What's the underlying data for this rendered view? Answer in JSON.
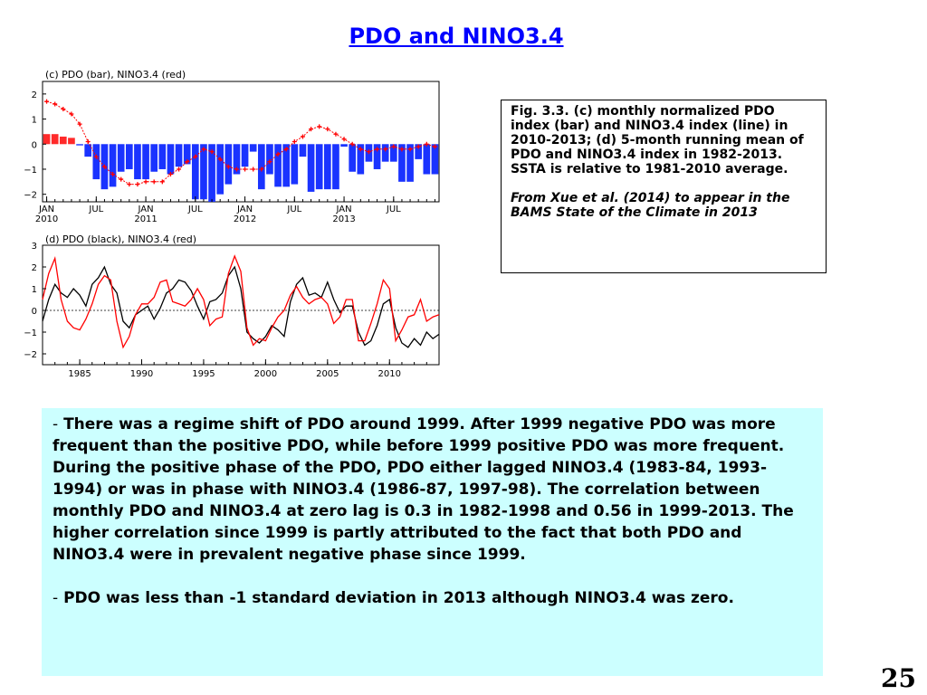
{
  "slide": {
    "title": "PDO and NINO3.4",
    "page_number": "25"
  },
  "caption": {
    "text": "Fig. 3.3. (c) monthly normalized PDO index (bar) and NINO3.4 index (line) in 2010-2013; (d) 5-month running mean of PDO and NINO3.4 index in 1982-2013. SSTA is relative to 1981-2010 average.",
    "citation": "From Xue et al. (2014) to appear in the BAMS State of the Climate in 2013"
  },
  "notes": {
    "dash": "-",
    "bullet1": "There was a regime shift of PDO around 1999. After 1999 negative PDO was more frequent than the positive PDO, while before 1999 positive PDO was more frequent.  During the positive phase of the PDO, PDO either lagged NINO3.4 (1983-84, 1993-1994) or was in phase with NINO3.4 (1986-87, 1997-98).  The correlation between monthly PDO and NINO3.4 at zero lag is 0.3 in 1982-1998 and 0.56 in 1999-2013. The higher correlation since 1999 is partly attributed to the fact that both PDO and NINO3.4 were in prevalent negative phase since 1999.",
    "bullet2": "PDO was less than -1 standard deviation in 2013 although NINO3.4 was zero."
  },
  "colors": {
    "pdo_positive": "#ff2a2a",
    "pdo_negative": "#1a33ff",
    "nino": "#ff0000",
    "pdo_line": "#000000",
    "notes_bg": "#ccffff",
    "title": "#0000ff"
  },
  "chart_data": [
    {
      "type": "bar",
      "title": "(c) PDO (bar), NINO3.4 (red)",
      "x_tick_labels": [
        {
          "month": 1,
          "line1": "JAN",
          "line2": "2010"
        },
        {
          "month": 7,
          "line1": "JUL",
          "line2": ""
        },
        {
          "month": 13,
          "line1": "JAN",
          "line2": "2011"
        },
        {
          "month": 19,
          "line1": "JUL",
          "line2": ""
        },
        {
          "month": 25,
          "line1": "JAN",
          "line2": "2012"
        },
        {
          "month": 31,
          "line1": "JUL",
          "line2": ""
        },
        {
          "month": 37,
          "line1": "JAN",
          "line2": "2013"
        },
        {
          "month": 43,
          "line1": "JUL",
          "line2": ""
        }
      ],
      "y_ticks": [
        2,
        1,
        0,
        -1,
        -2
      ],
      "ylim": [
        -2.3,
        2.5
      ],
      "xlim": [
        0.5,
        48.5
      ],
      "series": [
        {
          "name": "PDO",
          "mark": "bar",
          "values": [
            0.4,
            0.4,
            0.3,
            0.25,
            -0.05,
            -0.5,
            -1.4,
            -1.8,
            -1.7,
            -1.1,
            -1.0,
            -1.4,
            -1.4,
            -1.1,
            -1.0,
            -1.2,
            -0.9,
            -0.8,
            -2.2,
            -2.2,
            -2.3,
            -2.0,
            -1.6,
            -1.2,
            -0.9,
            -0.3,
            -1.8,
            -1.2,
            -1.7,
            -1.7,
            -1.6,
            -0.5,
            -1.9,
            -1.8,
            -1.8,
            -1.8,
            -0.1,
            -1.1,
            -1.2,
            -0.7,
            -1.0,
            -0.7,
            -0.7,
            -1.5,
            -1.5,
            -0.6,
            -1.2,
            -1.2
          ]
        },
        {
          "name": "NINO3.4",
          "mark": "line",
          "values": [
            1.7,
            1.6,
            1.4,
            1.2,
            0.8,
            0.1,
            -0.5,
            -0.9,
            -1.2,
            -1.4,
            -1.6,
            -1.6,
            -1.5,
            -1.5,
            -1.5,
            -1.2,
            -1.0,
            -0.7,
            -0.5,
            -0.2,
            -0.3,
            -0.6,
            -0.9,
            -1.0,
            -1.0,
            -1.0,
            -1.0,
            -0.7,
            -0.4,
            -0.2,
            0.1,
            0.3,
            0.6,
            0.7,
            0.6,
            0.4,
            0.2,
            0.0,
            -0.2,
            -0.3,
            -0.2,
            -0.2,
            -0.1,
            -0.2,
            -0.2,
            -0.1,
            0.0,
            -0.1
          ]
        }
      ]
    },
    {
      "type": "line",
      "title": "(d) PDO (black), NINO3.4 (red)",
      "x_ticks": [
        1985,
        1990,
        1995,
        2000,
        2005,
        2010
      ],
      "xlim": [
        1982,
        2014
      ],
      "y_ticks": [
        3,
        2,
        1,
        0,
        -1,
        -2
      ],
      "ylim": [
        -2.5,
        3
      ],
      "zero_line": "dashed",
      "series": [
        {
          "name": "PDO",
          "x": [
            1982.0,
            1982.5,
            1983.0,
            1983.5,
            1984.0,
            1984.5,
            1985.0,
            1985.5,
            1986.0,
            1986.5,
            1987.0,
            1987.5,
            1988.0,
            1988.5,
            1989.0,
            1989.5,
            1990.0,
            1990.5,
            1991.0,
            1991.5,
            1992.0,
            1992.5,
            1993.0,
            1993.5,
            1994.0,
            1994.5,
            1995.0,
            1995.5,
            1996.0,
            1996.5,
            1997.0,
            1997.5,
            1998.0,
            1998.5,
            1999.0,
            1999.5,
            2000.0,
            2000.5,
            2001.0,
            2001.5,
            2002.0,
            2002.5,
            2003.0,
            2003.5,
            2004.0,
            2004.5,
            2005.0,
            2005.5,
            2006.0,
            2006.5,
            2007.0,
            2007.5,
            2008.0,
            2008.5,
            2009.0,
            2009.5,
            2010.0,
            2010.5,
            2011.0,
            2011.5,
            2012.0,
            2012.5,
            2013.0,
            2013.5,
            2014.0
          ],
          "y": [
            -0.5,
            0.5,
            1.2,
            0.8,
            0.6,
            1.0,
            0.7,
            0.2,
            1.2,
            1.5,
            2.0,
            1.2,
            0.8,
            -0.5,
            -0.8,
            -0.2,
            0.0,
            0.2,
            -0.4,
            0.1,
            0.8,
            1.0,
            1.4,
            1.3,
            0.9,
            0.2,
            -0.4,
            0.4,
            0.5,
            0.8,
            1.6,
            2.0,
            1.0,
            -1.0,
            -1.3,
            -1.5,
            -1.2,
            -0.7,
            -0.9,
            -1.2,
            0.4,
            1.2,
            1.5,
            0.7,
            0.8,
            0.6,
            1.3,
            0.5,
            -0.1,
            0.2,
            0.2,
            -1.0,
            -1.6,
            -1.4,
            -0.7,
            0.3,
            0.5,
            -0.8,
            -1.5,
            -1.7,
            -1.3,
            -1.6,
            -1.0,
            -1.3,
            -1.1
          ]
        },
        {
          "name": "NINO3.4",
          "x": [
            1982.0,
            1982.5,
            1983.0,
            1983.5,
            1984.0,
            1984.5,
            1985.0,
            1985.5,
            1986.0,
            1986.5,
            1987.0,
            1987.5,
            1988.0,
            1988.5,
            1989.0,
            1989.5,
            1990.0,
            1990.5,
            1991.0,
            1991.5,
            1992.0,
            1992.5,
            1993.0,
            1993.5,
            1994.0,
            1994.5,
            1995.0,
            1995.5,
            1996.0,
            1996.5,
            1997.0,
            1997.5,
            1998.0,
            1998.5,
            1999.0,
            1999.5,
            2000.0,
            2000.5,
            2001.0,
            2001.5,
            2002.0,
            2002.5,
            2003.0,
            2003.5,
            2004.0,
            2004.5,
            2005.0,
            2005.5,
            2006.0,
            2006.5,
            2007.0,
            2007.5,
            2008.0,
            2008.5,
            2009.0,
            2009.5,
            2010.0,
            2010.5,
            2011.0,
            2011.5,
            2012.0,
            2012.5,
            2013.0,
            2013.5,
            2014.0
          ],
          "y": [
            0.5,
            1.7,
            2.4,
            0.5,
            -0.5,
            -0.8,
            -0.9,
            -0.4,
            0.3,
            1.2,
            1.6,
            1.4,
            -0.5,
            -1.7,
            -1.2,
            -0.2,
            0.3,
            0.3,
            0.6,
            1.3,
            1.4,
            0.4,
            0.3,
            0.2,
            0.5,
            1.0,
            0.5,
            -0.7,
            -0.4,
            -0.3,
            1.7,
            2.5,
            1.8,
            -0.8,
            -1.6,
            -1.3,
            -1.4,
            -0.8,
            -0.3,
            0.0,
            0.7,
            1.1,
            0.6,
            0.3,
            0.5,
            0.6,
            0.3,
            -0.6,
            -0.3,
            0.5,
            0.5,
            -1.4,
            -1.4,
            -0.6,
            0.3,
            1.4,
            1.0,
            -1.4,
            -0.9,
            -0.3,
            -0.2,
            0.5,
            -0.5,
            -0.3,
            -0.2
          ]
        }
      ]
    }
  ]
}
